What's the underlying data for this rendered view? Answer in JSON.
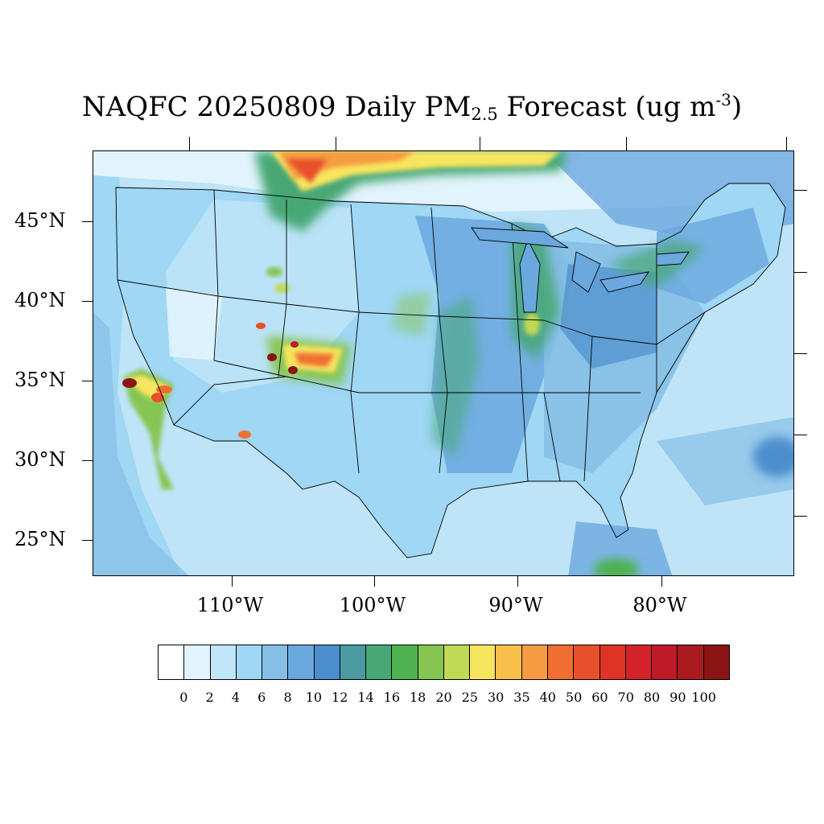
{
  "title": {
    "prefix": "NAQFC 20250809 Daily PM",
    "subscript": "2.5",
    "middle": " Forecast (ug m",
    "superscript": "-3",
    "suffix": ")"
  },
  "map": {
    "projection": "lambert-conformal",
    "region": "contiguous-united-states",
    "variable": "PM2.5",
    "lat_labels": [
      "45°N",
      "40°N",
      "35°N",
      "30°N",
      "25°N"
    ],
    "lon_labels": [
      "110°W",
      "100°W",
      "90°W",
      "80°W"
    ],
    "background_color": "#bfe4f7",
    "boundary_color": "#000000",
    "hotspots": [
      {
        "name": "southern-california",
        "level": 100
      },
      {
        "name": "central-colorado",
        "level": 100
      },
      {
        "name": "northern-colorado",
        "level": 80
      },
      {
        "name": "southern-arizona",
        "level": 50
      },
      {
        "name": "southern-canada-plume",
        "level": 40
      },
      {
        "name": "lake-michigan-region",
        "level": 25
      },
      {
        "name": "north-central-wyoming",
        "level": 35
      }
    ]
  },
  "colorbar": {
    "colors": [
      "#ffffff",
      "#e1f3fc",
      "#c1e6f8",
      "#9fd7f5",
      "#86bfe6",
      "#6ba8de",
      "#4b8ecd",
      "#4a9aa0",
      "#47a875",
      "#4db24f",
      "#86c552",
      "#c0d957",
      "#f8e55f",
      "#f8bf4b",
      "#f59b41",
      "#f06f30",
      "#e8502b",
      "#de3427",
      "#d4222b",
      "#bf1a27",
      "#a91b1f",
      "#8b1414"
    ],
    "labels": [
      "0",
      "2",
      "4",
      "6",
      "8",
      "10",
      "12",
      "14",
      "16",
      "18",
      "20",
      "25",
      "30",
      "35",
      "40",
      "50",
      "60",
      "70",
      "80",
      "90",
      "100"
    ]
  }
}
